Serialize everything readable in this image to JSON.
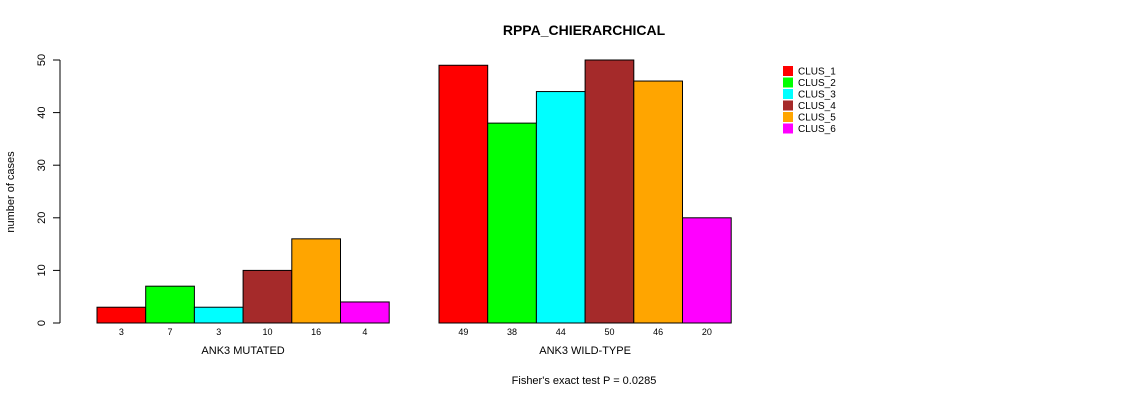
{
  "chart_data": {
    "type": "bar",
    "title": "RPPA_CHIERARCHICAL",
    "ylabel": "number of cases",
    "ylim": [
      0,
      50
    ],
    "yticks": [
      0,
      10,
      20,
      30,
      40,
      50
    ],
    "groups": [
      {
        "label": "ANK3 MUTATED",
        "values": [
          3,
          7,
          3,
          10,
          16,
          4
        ],
        "counts": [
          "3",
          "7",
          "3",
          "10",
          "16",
          "4"
        ]
      },
      {
        "label": "ANK3 WILD-TYPE",
        "values": [
          49,
          38,
          44,
          50,
          46,
          20
        ],
        "counts": [
          "49",
          "38",
          "44",
          "50",
          "46",
          "20"
        ]
      }
    ],
    "series": [
      {
        "name": "CLUS_1",
        "color": "#ff0000"
      },
      {
        "name": "CLUS_2",
        "color": "#00ff00"
      },
      {
        "name": "CLUS_3",
        "color": "#00ffff"
      },
      {
        "name": "CLUS_4",
        "color": "#a52a2a"
      },
      {
        "name": "CLUS_5",
        "color": "#ffa500"
      },
      {
        "name": "CLUS_6",
        "color": "#ff00ff"
      }
    ],
    "legend_position": "top-right",
    "grid": false,
    "footnote": "Fisher's exact test P = 0.0285"
  }
}
